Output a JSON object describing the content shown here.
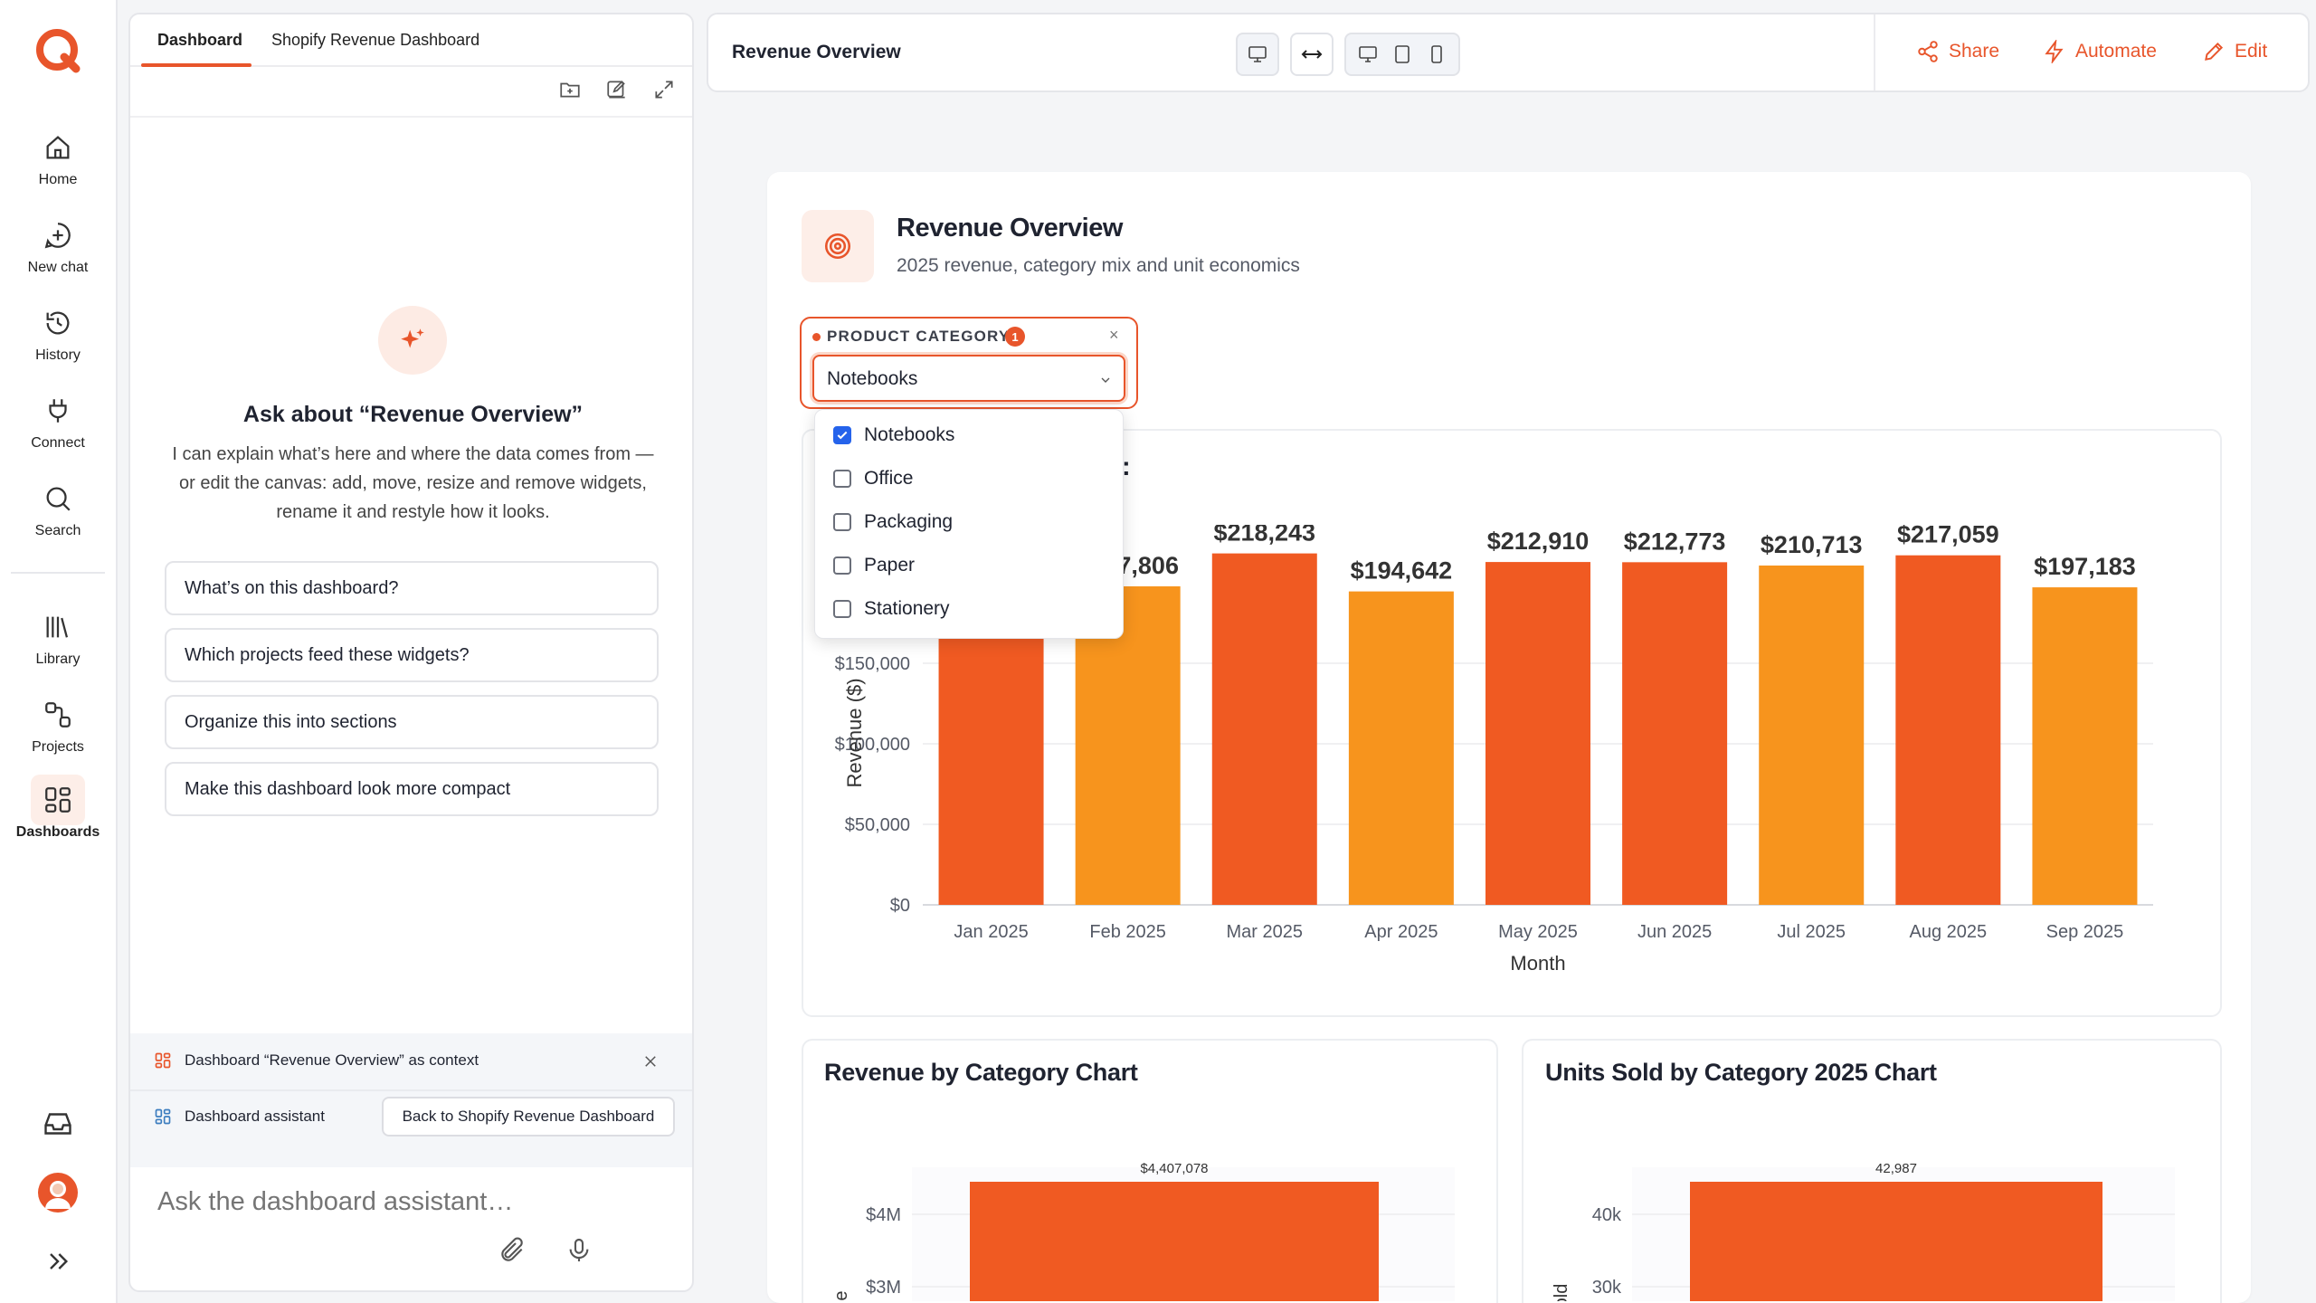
{
  "nav": {
    "items": [
      {
        "label": "Home",
        "icon": "home-icon"
      },
      {
        "label": "New chat",
        "icon": "new-chat-icon"
      },
      {
        "label": "History",
        "icon": "history-icon"
      },
      {
        "label": "Connect",
        "icon": "plug-icon"
      },
      {
        "label": "Search",
        "icon": "search-icon"
      },
      {
        "label": "Library",
        "icon": "library-icon"
      },
      {
        "label": "Projects",
        "icon": "projects-icon"
      },
      {
        "label": "Dashboards",
        "icon": "dashboards-icon"
      }
    ],
    "active": "Dashboards"
  },
  "chat": {
    "tabs": [
      "Dashboard",
      "Shopify Revenue Dashboard"
    ],
    "heading": "Ask about “Revenue Overview”",
    "intro": "I can explain what’s here and where the data comes from — or edit the canvas: add, move, resize and remove widgets, rename it and restyle how it looks.",
    "suggestions": [
      "What’s on this dashboard?",
      "Which projects feed these widgets?",
      "Organize this into sections",
      "Make this dashboard look more compact"
    ],
    "context_label": "Dashboard “Revenue Overview” as context",
    "assistant_label": "Dashboard assistant",
    "back_button": "Back to Shopify Revenue Dashboard",
    "input_placeholder": "Ask the dashboard assistant…"
  },
  "topbar": {
    "title": "Revenue Overview",
    "actions": [
      "Share",
      "Automate",
      "Edit"
    ]
  },
  "dashboard": {
    "title": "Revenue Overview",
    "subtitle": "2025 revenue, category mix and unit economics",
    "filter": {
      "label": "PRODUCT CATEGORY",
      "count": "1",
      "selected": "Notebooks",
      "options": [
        {
          "label": "Notebooks",
          "checked": true
        },
        {
          "label": "Office",
          "checked": false
        },
        {
          "label": "Packaging",
          "checked": false
        },
        {
          "label": "Paper",
          "checked": false
        },
        {
          "label": "Stationery",
          "checked": false
        }
      ],
      "clear": "×"
    },
    "widget_title_fragment": ":",
    "accent": "#e8552b"
  },
  "chart_data": [
    {
      "type": "bar",
      "categories": [
        "Jan 2025",
        "Feb 2025",
        "Mar 2025",
        "Apr 2025",
        "May 2025",
        "Jun 2025",
        "Jul 2025",
        "Aug 2025",
        "Sep 2025"
      ],
      "values": [
        null,
        197806,
        218243,
        194642,
        212910,
        212773,
        210713,
        217059,
        197183
      ],
      "value_labels": [
        "",
        "$197,806",
        "$218,243",
        "$194,642",
        "$212,910",
        "$212,773",
        "$210,713",
        "$217,059",
        "$197,183"
      ],
      "colors": [
        "#f05a22",
        "#f7941d",
        "#f05a22",
        "#f7941d",
        "#f05a22",
        "#f05a22",
        "#f7941d",
        "#f05a22",
        "#f7941d"
      ],
      "xlabel": "Month",
      "ylabel": "Revenue ($)",
      "yticks": [
        "$0",
        "$50,000",
        "$100,000",
        "$150,000"
      ],
      "ytick_values": [
        0,
        50000,
        100000,
        150000
      ],
      "ylim": [
        0,
        236000
      ],
      "grid": true
    },
    {
      "type": "bar",
      "title": "Revenue by Category Chart",
      "values": [
        4407078
      ],
      "value_labels": [
        "$4,407,078"
      ],
      "yticks": [
        "$4M",
        "$3M"
      ],
      "ytick_values": [
        4000000,
        3000000
      ],
      "ylabel": "e",
      "grid": true
    },
    {
      "type": "bar",
      "title": "Units Sold by Category 2025 Chart",
      "values": [
        42987
      ],
      "value_labels": [
        "42,987"
      ],
      "yticks": [
        "40k",
        "30k"
      ],
      "ytick_values": [
        40000,
        30000
      ],
      "ylabel": "old",
      "grid": true
    }
  ]
}
